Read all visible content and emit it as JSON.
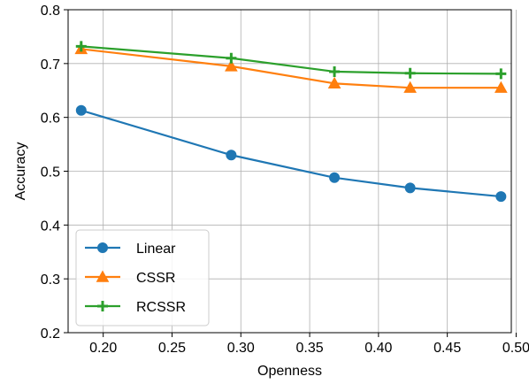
{
  "chart_data": {
    "type": "line",
    "xlabel": "Openness",
    "ylabel": "Accuracy",
    "xlim": [
      0.1745,
      0.4965
    ],
    "ylim": [
      0.2,
      0.8
    ],
    "xticks": [
      "0.20",
      "0.25",
      "0.30",
      "0.35",
      "0.40",
      "0.45",
      "0.50"
    ],
    "yticks": [
      "0.2",
      "0.3",
      "0.4",
      "0.5",
      "0.6",
      "0.7",
      "0.8"
    ],
    "grid": true,
    "legend_position": "lower-left",
    "x": [
      0.184,
      0.293,
      0.368,
      0.423,
      0.489
    ],
    "series": [
      {
        "name": "Linear",
        "marker": "circle",
        "color": "#1f77b4",
        "values": [
          0.613,
          0.53,
          0.488,
          0.469,
          0.453
        ]
      },
      {
        "name": "CSSR",
        "marker": "triangle",
        "color": "#ff7f0e",
        "values": [
          0.727,
          0.695,
          0.663,
          0.655,
          0.655
        ]
      },
      {
        "name": "RCSSR",
        "marker": "plus",
        "color": "#2ca02c",
        "values": [
          0.732,
          0.71,
          0.685,
          0.682,
          0.681
        ]
      }
    ]
  }
}
